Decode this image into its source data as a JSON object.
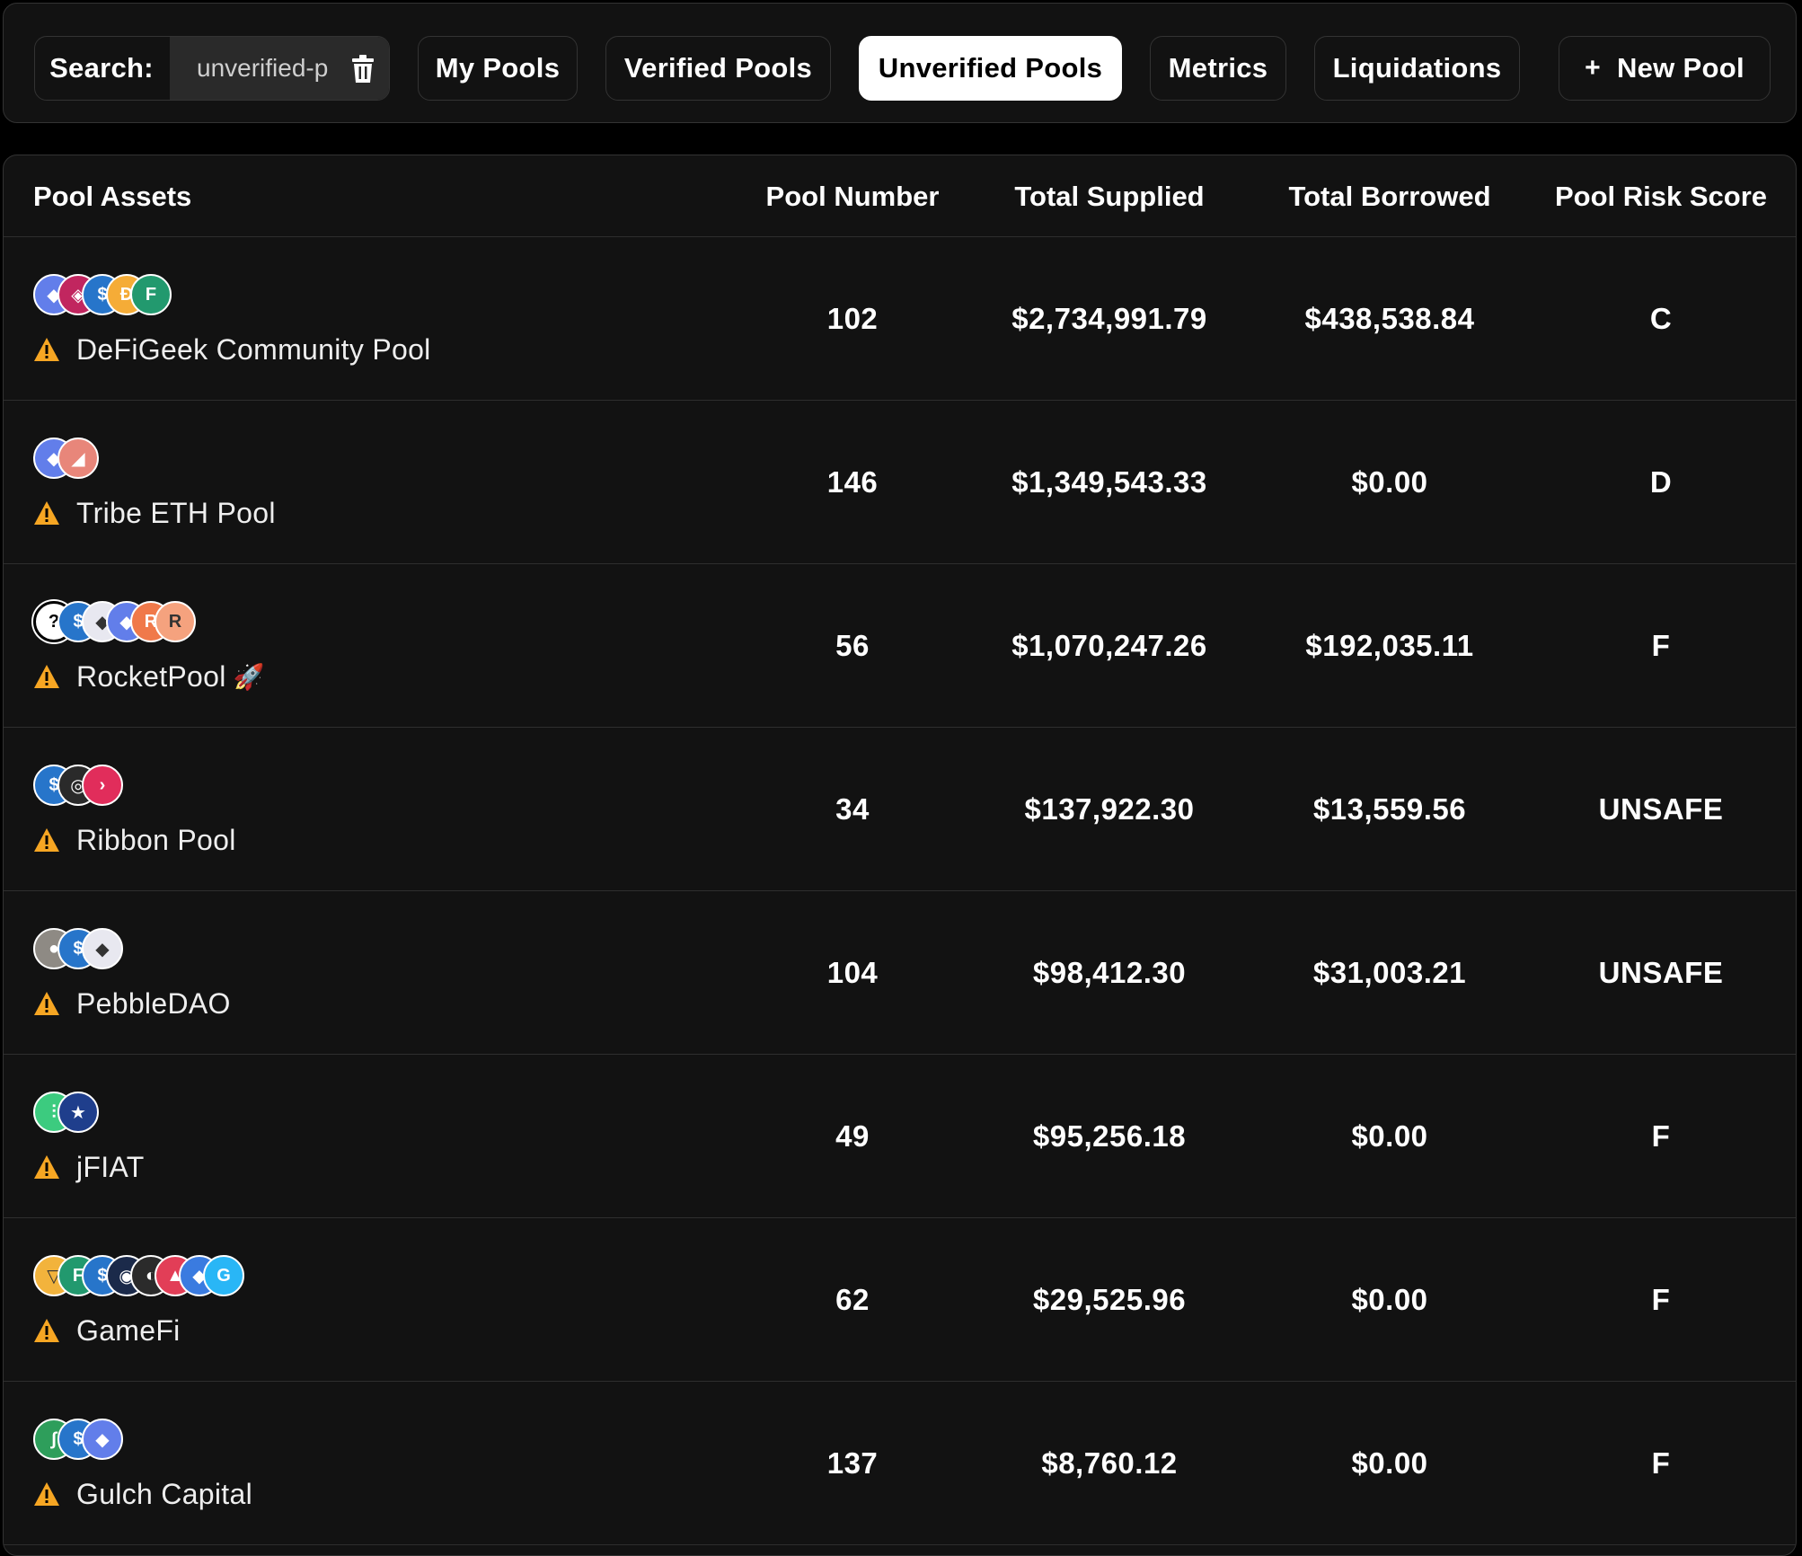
{
  "search": {
    "label": "Search:",
    "value": "unverified-p"
  },
  "nav": [
    {
      "label": "My Pools",
      "active": false
    },
    {
      "label": "Verified Pools",
      "active": false
    },
    {
      "label": "Unverified Pools",
      "active": true
    },
    {
      "label": "Metrics",
      "active": false
    },
    {
      "label": "Liquidations",
      "active": false
    },
    {
      "label": "New Pool",
      "active": false
    }
  ],
  "table": {
    "headers": [
      "Pool Assets",
      "Pool Number",
      "Total Supplied",
      "Total Borrowed",
      "Pool Risk Score"
    ],
    "rows": [
      {
        "name": "DeFiGeek Community Pool",
        "number": "102",
        "supplied": "$2,734,991.79",
        "borrowed": "$438,538.84",
        "risk": "C",
        "assets": [
          {
            "icon": "eth-icon",
            "color": "#627EEA",
            "glyph": "◆"
          },
          {
            "icon": "fuse-icon",
            "color": "#C1265F",
            "glyph": "◈"
          },
          {
            "icon": "usdc-icon",
            "color": "#2775CA",
            "glyph": "$"
          },
          {
            "icon": "dai-icon",
            "color": "#F5AC37",
            "glyph": "Ð"
          },
          {
            "icon": "fei-icon",
            "color": "#22996E",
            "glyph": "F"
          }
        ]
      },
      {
        "name": "Tribe ETH Pool",
        "number": "146",
        "supplied": "$1,349,543.33",
        "borrowed": "$0.00",
        "risk": "D",
        "assets": [
          {
            "icon": "eth-icon",
            "color": "#627EEA",
            "glyph": "◆"
          },
          {
            "icon": "tribe-icon",
            "color": "#E8867A",
            "glyph": "◢"
          }
        ]
      },
      {
        "name": "RocketPool",
        "emoji": "🚀",
        "number": "56",
        "supplied": "$1,070,247.26",
        "borrowed": "$192,035.11",
        "risk": "F",
        "assets": [
          {
            "icon": "unknown-token-icon",
            "color": "#000000",
            "glyph": "?"
          },
          {
            "icon": "usdc-icon",
            "color": "#2775CA",
            "glyph": "$"
          },
          {
            "icon": "eth-white-icon",
            "color": "#E8E8F0",
            "glyph": "◆"
          },
          {
            "icon": "eth-icon",
            "color": "#627EEA",
            "glyph": "◆"
          },
          {
            "icon": "reth-icon",
            "color": "#F0794A",
            "glyph": "R"
          },
          {
            "icon": "rpl-icon",
            "color": "#F5A27E",
            "glyph": "R"
          }
        ]
      },
      {
        "name": "Ribbon Pool",
        "number": "34",
        "supplied": "$137,922.30",
        "borrowed": "$13,559.56",
        "risk": "UNSAFE",
        "assets": [
          {
            "icon": "usdc-icon",
            "color": "#2775CA",
            "glyph": "$"
          },
          {
            "icon": "ribbon-dark-icon",
            "color": "#2A2A2A",
            "glyph": "◎"
          },
          {
            "icon": "rbn-icon",
            "color": "#E12D5B",
            "glyph": "›"
          }
        ]
      },
      {
        "name": "PebbleDAO",
        "number": "104",
        "supplied": "$98,412.30",
        "borrowed": "$31,003.21",
        "risk": "UNSAFE",
        "assets": [
          {
            "icon": "pebble-icon",
            "color": "#8E8A84",
            "glyph": "●"
          },
          {
            "icon": "usdc-icon",
            "color": "#2775CA",
            "glyph": "$"
          },
          {
            "icon": "eth-white-icon",
            "color": "#E8E8F0",
            "glyph": "◆"
          }
        ]
      },
      {
        "name": "jFIAT",
        "number": "49",
        "supplied": "$95,256.18",
        "borrowed": "$0.00",
        "risk": "F",
        "assets": [
          {
            "icon": "jarvis-icon",
            "color": "#3CCB7F",
            "glyph": "⫶"
          },
          {
            "icon": "jeur-icon",
            "color": "#1F3E8C",
            "glyph": "★"
          }
        ]
      },
      {
        "name": "GameFi",
        "number": "62",
        "supplied": "$29,525.96",
        "borrowed": "$0.00",
        "risk": "F",
        "assets": [
          {
            "icon": "yield-guild-icon",
            "color": "#F2B33C",
            "glyph": "▽"
          },
          {
            "icon": "fei-icon",
            "color": "#22996E",
            "glyph": "F"
          },
          {
            "icon": "usdc-icon",
            "color": "#2775CA",
            "glyph": "$"
          },
          {
            "icon": "dark-token-icon",
            "color": "#1B2A4A",
            "glyph": "◉"
          },
          {
            "icon": "gala-icon",
            "color": "#2B2B2B",
            "glyph": "◐"
          },
          {
            "icon": "axs-icon",
            "color": "#E23E57",
            "glyph": "▲"
          },
          {
            "icon": "ilv-icon",
            "color": "#3A7BE0",
            "glyph": "◆"
          },
          {
            "icon": "gf-icon",
            "color": "#29B6F6",
            "glyph": "G"
          }
        ]
      },
      {
        "name": "Gulch Capital",
        "number": "137",
        "supplied": "$8,760.12",
        "borrowed": "$0.00",
        "risk": "F",
        "assets": [
          {
            "icon": "gulch-icon",
            "color": "#2E9E5B",
            "glyph": "∫"
          },
          {
            "icon": "usdc-icon",
            "color": "#2775CA",
            "glyph": "$"
          },
          {
            "icon": "eth-icon",
            "color": "#627EEA",
            "glyph": "◆"
          }
        ]
      }
    ]
  },
  "colors": {
    "background": "#121212",
    "page": "#000000",
    "warning": "#F6A623",
    "active_tab_bg": "#FFFFFF"
  }
}
